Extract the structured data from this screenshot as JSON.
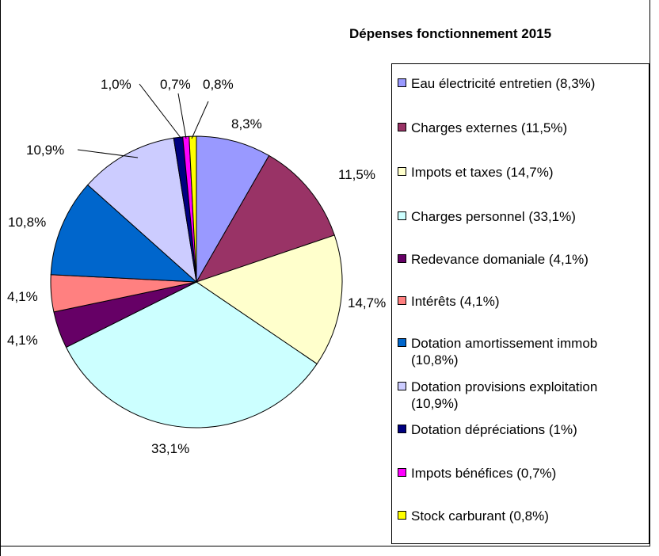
{
  "chart_data": {
    "type": "pie",
    "title": "Dépenses fonctionnement 2015",
    "legend_position": "right",
    "slices": [
      {
        "name": "Eau électricité entretien (8,3%)",
        "value": 8.3,
        "label": "8,3%",
        "color": "#9999ff"
      },
      {
        "name": "Charges externes (11,5%)",
        "value": 11.5,
        "label": "11,5%",
        "color": "#993366"
      },
      {
        "name": "Impots et taxes (14,7%)",
        "value": 14.7,
        "label": "14,7%",
        "color": "#ffffcc"
      },
      {
        "name": "Charges personnel (33,1%)",
        "value": 33.1,
        "label": "33,1%",
        "color": "#ccffff"
      },
      {
        "name": "Redevance domaniale (4,1%)",
        "value": 4.1,
        "label": "4,1%",
        "color": "#660066"
      },
      {
        "name": "Intérêts (4,1%)",
        "value": 4.1,
        "label": "4,1%",
        "color": "#ff8080"
      },
      {
        "name": "Dotation amortissement immob (10,8%)",
        "value": 10.8,
        "label": "10,8%",
        "color": "#0066cc"
      },
      {
        "name": "Dotation provisions exploitation (10,9%)",
        "value": 10.9,
        "label": "10,9%",
        "color": "#ccccff"
      },
      {
        "name": "Dotation dépréciations (1%)",
        "value": 1.0,
        "label": "1,0%",
        "color": "#000080"
      },
      {
        "name": "Impots bénéfices (0,7%)",
        "value": 0.7,
        "label": "0,7%",
        "color": "#ff00ff"
      },
      {
        "name": "Stock carburant (0,8%)",
        "value": 0.8,
        "label": "0,8%",
        "color": "#ffff00"
      }
    ]
  }
}
